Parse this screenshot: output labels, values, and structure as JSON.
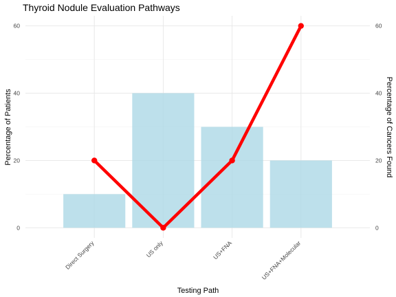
{
  "chart_data": {
    "type": "bar",
    "title": "Thyroid Nodule Evaluation Pathways",
    "xlabel": "Testing Path",
    "ylabel": "Percentage of Patients",
    "y2label": "Percentage of Cancers Found",
    "categories": [
      "Direct Surgery",
      "US only",
      "US+FNA",
      "US+FNA+Molecular"
    ],
    "series": [
      {
        "type": "bar",
        "values": [
          10,
          40,
          30,
          20
        ],
        "color": "#add8e6"
      },
      {
        "type": "line",
        "values": [
          20,
          0,
          20,
          60
        ],
        "color": "#ff0000"
      }
    ],
    "ylim": [
      -3,
      63
    ],
    "y_ticks": [
      0,
      20,
      40,
      60
    ],
    "y2_ticks": [
      0,
      20,
      40,
      60
    ],
    "grid": true
  }
}
